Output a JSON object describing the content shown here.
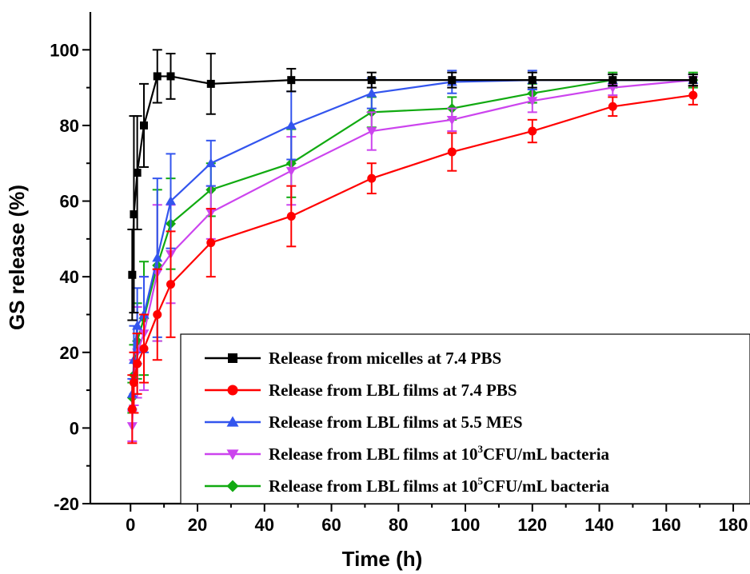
{
  "chart_data": {
    "type": "line",
    "xlabel": "Time (h)",
    "ylabel": "GS release (%)",
    "xlim": [
      -12,
      185
    ],
    "ylim": [
      -20,
      110
    ],
    "xticks": [
      0,
      20,
      40,
      60,
      80,
      100,
      120,
      140,
      160,
      180
    ],
    "yticks": [
      -20,
      0,
      20,
      40,
      60,
      80,
      100
    ],
    "legend_position": "bottom-right",
    "grid": false,
    "series": [
      {
        "name": "Release from micelles at 7.4 PBS",
        "legend_parts": [
          "Release from micelles at 7.4 PBS"
        ],
        "color": "#000000",
        "marker": "square",
        "x": [
          0.5,
          1,
          2,
          4,
          8,
          12,
          24,
          48,
          72,
          96,
          120,
          144,
          168
        ],
        "y": [
          40.5,
          56.5,
          67.5,
          80,
          93,
          93,
          91,
          92,
          92,
          92,
          92,
          92,
          92
        ],
        "err": [
          12,
          26,
          15,
          11,
          7,
          6,
          8,
          3,
          2,
          2,
          2,
          1.5,
          1.5
        ]
      },
      {
        "name": "Release from LBL films at 7.4 PBS",
        "legend_parts": [
          "Release from LBL films at 7.4 PBS"
        ],
        "color": "#ff0000",
        "marker": "circle",
        "x": [
          0.5,
          1,
          2,
          4,
          8,
          12,
          24,
          48,
          72,
          96,
          120,
          144,
          168
        ],
        "y": [
          5,
          12,
          17,
          21,
          30,
          38,
          49,
          56,
          66,
          73,
          78.5,
          85,
          88
        ],
        "err": [
          9,
          8,
          8,
          9,
          12,
          14,
          9,
          8,
          4,
          5,
          3,
          2.5,
          2.5
        ]
      },
      {
        "name": "Release from LBL films at 5.5 MES",
        "legend_parts": [
          "Release from LBL films at 5.5 MES"
        ],
        "color": "#3355ee",
        "marker": "triangle-up",
        "x": [
          0.5,
          1,
          2,
          4,
          8,
          12,
          24,
          48,
          72,
          96,
          120,
          144,
          168
        ],
        "y": [
          9,
          18,
          27,
          30,
          45,
          60,
          70,
          80,
          88.5,
          91.5,
          92,
          92,
          92
        ],
        "err": [
          4,
          9,
          10,
          10,
          21,
          12.5,
          6,
          9,
          4,
          3,
          2.5,
          1.5,
          1.5
        ]
      },
      {
        "name": "Release from LBL films at 10^3CFU/mL bacteria",
        "legend_parts": [
          "Release from LBL films at 10",
          "3",
          "CFU/mL bacteria"
        ],
        "color": "#cc44ee",
        "marker": "triangle-down",
        "x": [
          0.5,
          1,
          2,
          4,
          8,
          12,
          24,
          48,
          72,
          96,
          120,
          144,
          168
        ],
        "y": [
          0.5,
          12,
          20,
          25,
          41,
          46,
          57,
          68,
          78.5,
          81.5,
          86.5,
          90,
          92
        ],
        "err": [
          4,
          6,
          12,
          15,
          18,
          13,
          7,
          9,
          5,
          3,
          3,
          2,
          1.5
        ]
      },
      {
        "name": "Release from LBL films at 10^5CFU/mL bacteria",
        "legend_parts": [
          "Release from LBL films at 10",
          "5",
          "CFU/mL bacteria"
        ],
        "color": "#11aa11",
        "marker": "diamond",
        "x": [
          0.5,
          1,
          2,
          4,
          8,
          12,
          24,
          48,
          72,
          96,
          120,
          144,
          168
        ],
        "y": [
          8,
          14,
          23,
          29,
          43,
          54,
          63,
          70,
          83.5,
          84.5,
          88.5,
          92,
          92
        ],
        "err": [
          4,
          8,
          10,
          15,
          20,
          12,
          7,
          9,
          4,
          3,
          2.5,
          2,
          2
        ]
      }
    ]
  }
}
